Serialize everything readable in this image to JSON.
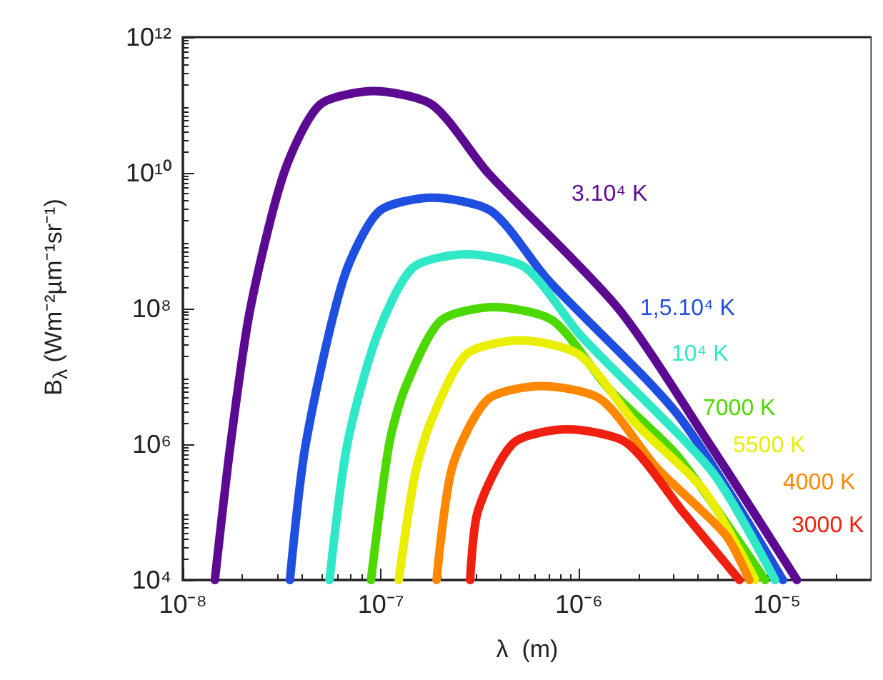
{
  "chart_data": {
    "type": "line",
    "xlabel": "λ  (m)",
    "ylabel": "B$_{λ}$ (Wm⁻²µm⁻¹sr⁻¹)",
    "log": "xy",
    "grid": false,
    "legend": false,
    "marker": "none",
    "line_style": "solid",
    "xlim": [
      1e-08,
      3e-05
    ],
    "xticks": [
      {
        "value": 1e-08,
        "label": "10⁻⁸"
      },
      {
        "value": 1e-07,
        "label": "10⁻⁷"
      },
      {
        "value": 1e-06,
        "label": "10⁻⁶"
      },
      {
        "value": 1e-05,
        "label": "10⁻⁵"
      }
    ],
    "ylim": [
      10000.0,
      1000000000000.0
    ],
    "yticks": [
      {
        "value": 10000.0,
        "label": "10⁴"
      },
      {
        "value": 1000000.0,
        "label": "10⁶"
      },
      {
        "value": 100000000.0,
        "label": "10⁸"
      },
      {
        "value": 10000000000.0,
        "label": "10¹⁰"
      },
      {
        "value": 1000000000000.0,
        "label": "10¹²"
      }
    ],
    "series": [
      {
        "name": "3.10⁴ K",
        "color": "#5b0a91",
        "x": [
          1.45e-08,
          1.74e-08,
          2.19e-08,
          3.24e-08,
          4.9e-08,
          9.12e-08,
          1.82e-07,
          3.47e-07,
          1.58e-06,
          4.57e-06,
          1.26e-05
        ],
        "values": [
          10000.0,
          1000000.0,
          100000000.0,
          10000000000.0,
          100000000000.0,
          160000000000.0,
          100000000000.0,
          10000000000.0,
          100000000.0,
          1000000.0,
          10000.0
        ]
      },
      {
        "name": "1,5.10⁴ K",
        "color": "#1f4fe0",
        "x": [
          3.47e-08,
          4.17e-08,
          6.46e-08,
          9.77e-08,
          1.82e-07,
          3.63e-07,
          6.92e-07,
          3.16e-06,
          1.07e-05
        ],
        "values": [
          10000.0,
          1000000.0,
          270000000.0,
          2700000000.0,
          4300000000.0,
          2700000000.0,
          270000000.0,
          2700000.0,
          10000.0
        ]
      },
      {
        "name": "10⁴ K",
        "color": "#2ee8c8",
        "x": [
          5.5e-08,
          6.76e-08,
          9.55e-08,
          1.45e-07,
          2.69e-07,
          5.37e-07,
          1.02e-06,
          4.68e-06,
          9.77e-06
        ],
        "values": [
          10000.0,
          1000000.0,
          40000000.0,
          400000000.0,
          630000000.0,
          400000000.0,
          40000000.0,
          400000.0,
          10000.0
        ]
      },
      {
        "name": "7000 K",
        "color": "#4cd900",
        "x": [
          8.91e-08,
          1.1e-07,
          1.32e-07,
          2e-07,
          3.72e-07,
          7.41e-07,
          1.41e-06,
          3.16e-06,
          8.71e-06
        ],
        "values": [
          10000.0,
          1000000.0,
          6600000.0,
          66000000.0,
          105000000.0,
          66000000.0,
          6600000.0,
          660000.0,
          10000.0
        ]
      },
      {
        "name": "5500 K",
        "color": "#eaee00",
        "x": [
          1.23e-07,
          1.48e-07,
          1.78e-07,
          2.69e-07,
          5.01e-07,
          1e-06,
          1.91e-06,
          4.27e-06,
          7.76e-06
        ],
        "values": [
          10000.0,
          340000.0,
          2100000.0,
          21000000.0,
          34000000.0,
          21000000.0,
          2100000.0,
          210000.0,
          10000.0
        ]
      },
      {
        "name": "4000 K",
        "color": "#ff8800",
        "x": [
          1.91e-07,
          2.29e-07,
          3.47e-07,
          6.46e-07,
          1.29e-06,
          2.45e-06,
          5.5e-06,
          7.24e-06
        ],
        "values": [
          10000.0,
          460000.0,
          4600000.0,
          7200000.0,
          4600000.0,
          460000.0,
          46000.0,
          10000.0
        ]
      },
      {
        "name": "3000 K",
        "color": "#f02010",
        "x": [
          2.82e-07,
          3.09e-07,
          4.68e-07,
          8.71e-07,
          1.74e-06,
          3.31e-06,
          6.46e-06
        ],
        "values": [
          10000.0,
          105000.0,
          1050000.0,
          1660000.0,
          1050000.0,
          105000.0,
          10000.0
        ]
      }
    ]
  }
}
